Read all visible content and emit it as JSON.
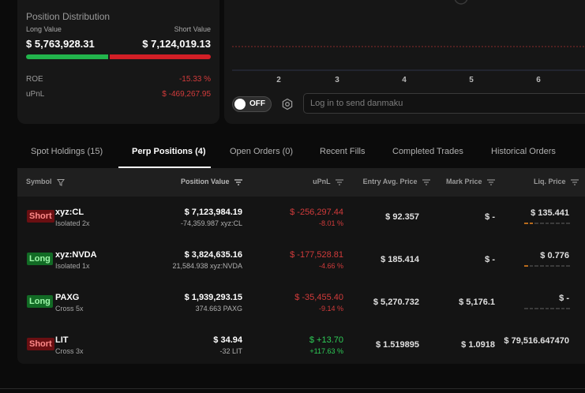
{
  "position_distribution": {
    "title": "Position Distribution",
    "long_label": "Long Value",
    "short_label": "Short Value",
    "long_value": "$ 5,763,928.31",
    "short_value": "$ 7,124,019.13",
    "long_fraction": 0.447,
    "roe_label": "ROE",
    "roe_value": "-15.33 %",
    "upnl_label": "uPnL",
    "upnl_value": "$ -469,267.95",
    "colors": {
      "long": "#22b44c",
      "short": "#d21f26",
      "negative": "#d23b3b"
    }
  },
  "chart": {
    "x_ticks": [
      "2",
      "3",
      "4",
      "5",
      "6"
    ]
  },
  "danmaku": {
    "toggle_label": "OFF",
    "placeholder": "Log in to send danmaku"
  },
  "tabs": [
    {
      "label": "Spot Holdings (15)"
    },
    {
      "label": "Perp Positions (4)",
      "active": true
    },
    {
      "label": "Open Orders (0)"
    },
    {
      "label": "Recent Fills"
    },
    {
      "label": "Completed Trades"
    },
    {
      "label": "Historical Orders"
    }
  ],
  "table": {
    "headers": {
      "symbol": "Symbol",
      "position_value": "Position Value",
      "upnl": "uPnL",
      "entry": "Entry Avg. Price",
      "mark": "Mark Price",
      "liq": "Liq. Price"
    },
    "rows": [
      {
        "side": "Short",
        "symbol": "xyz:CL",
        "margin": "Isolated 2x",
        "position_value": "$ 7,123,984.19",
        "size": "-74,359.987 xyz:CL",
        "upnl": "$ -256,297.44",
        "upnl_pct": "-8.01 %",
        "upnl_sign": "neg",
        "entry": "$ 92.357",
        "mark": "$ -",
        "liq": "$ 135.441",
        "liq_level": 2
      },
      {
        "side": "Long",
        "symbol": "xyz:NVDA",
        "margin": "Isolated 1x",
        "position_value": "$ 3,824,635.16",
        "size": "21,584.938 xyz:NVDA",
        "upnl": "$ -177,528.81",
        "upnl_pct": "-4.66 %",
        "upnl_sign": "neg",
        "entry": "$ 185.414",
        "mark": "$ -",
        "liq": "$ 0.776",
        "liq_level": 1
      },
      {
        "side": "Long",
        "symbol": "PAXG",
        "margin": "Cross 5x",
        "position_value": "$ 1,939,293.15",
        "size": "374.663 PAXG",
        "upnl": "$ -35,455.40",
        "upnl_pct": "-9.14 %",
        "upnl_sign": "neg",
        "entry": "$ 5,270.732",
        "mark": "$ 5,176.1",
        "liq": "$ -",
        "liq_level": 0
      },
      {
        "side": "Short",
        "symbol": "LIT",
        "margin": "Cross 3x",
        "position_value": "$ 34.94",
        "size": "-32 LIT",
        "upnl": "$ +13.70",
        "upnl_pct": "+117.63 %",
        "upnl_sign": "pos",
        "entry": "$ 1.519895",
        "mark": "$ 1.0918",
        "liq": "$ 79,516.647470",
        "liq_level": 0
      }
    ]
  }
}
